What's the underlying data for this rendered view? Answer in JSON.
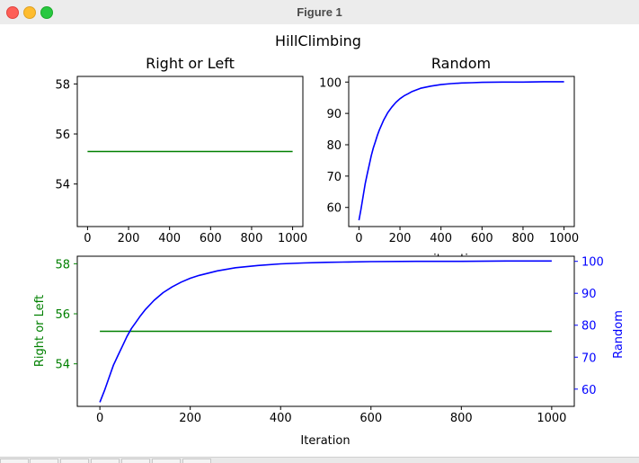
{
  "window": {
    "title": "Figure 1"
  },
  "figure": {
    "suptitle": "HillClimbing"
  },
  "chart_data": [
    {
      "type": "line",
      "title": "Right or Left",
      "xlabel": "",
      "ylabel": "",
      "xlim": [
        -50,
        1050
      ],
      "ylim": [
        52.3,
        58.3
      ],
      "xticks": [
        0,
        200,
        400,
        600,
        800,
        1000
      ],
      "yticks": [
        54,
        56,
        58
      ],
      "series": [
        {
          "color": "#008000",
          "x": [
            0,
            1000
          ],
          "y": [
            55.3,
            55.3
          ]
        }
      ]
    },
    {
      "type": "line",
      "title": "Random",
      "xlabel": "iterations",
      "ylabel": "",
      "xlim": [
        -50,
        1050
      ],
      "ylim": [
        53.9,
        101.8
      ],
      "xticks": [
        0,
        200,
        400,
        600,
        800,
        1000
      ],
      "yticks": [
        60,
        70,
        80,
        90,
        100
      ],
      "series": [
        {
          "color": "#0000ff",
          "x": [
            0,
            10,
            20,
            30,
            40,
            50,
            60,
            70,
            80,
            90,
            100,
            120,
            140,
            160,
            180,
            200,
            220,
            240,
            260,
            280,
            300,
            350,
            400,
            450,
            500,
            550,
            600,
            700,
            800,
            900,
            1000
          ],
          "y": [
            55.9,
            59.5,
            63.5,
            67.5,
            70.5,
            73.5,
            76.5,
            79.0,
            81.0,
            83.0,
            84.8,
            87.8,
            90.2,
            92.0,
            93.5,
            94.7,
            95.6,
            96.3,
            97.0,
            97.5,
            98.0,
            98.7,
            99.2,
            99.5,
            99.7,
            99.8,
            99.9,
            100.0,
            100.0,
            100.1,
            100.1
          ]
        }
      ]
    },
    {
      "type": "line",
      "title": "",
      "xlabel": "Iteration",
      "ylabel": "Right or Left",
      "ylabel_right": "Random",
      "xlim": [
        -50,
        1050
      ],
      "ylim": [
        52.3,
        58.3
      ],
      "ylim_right": [
        54.6,
        101.6
      ],
      "xticks": [
        0,
        200,
        400,
        600,
        800,
        1000
      ],
      "yticks": [
        54,
        56,
        58
      ],
      "yticks_right": [
        60,
        70,
        80,
        90,
        100
      ],
      "left_color": "#008000",
      "right_color": "#0000ff",
      "series": [
        {
          "color": "#008000",
          "axis": "left",
          "x": [
            0,
            1000
          ],
          "y": [
            55.3,
            55.3
          ]
        },
        {
          "color": "#0000ff",
          "axis": "right",
          "x": [
            0,
            10,
            20,
            30,
            40,
            50,
            60,
            70,
            80,
            90,
            100,
            120,
            140,
            160,
            180,
            200,
            220,
            240,
            260,
            280,
            300,
            350,
            400,
            450,
            500,
            550,
            600,
            700,
            800,
            900,
            1000
          ],
          "y": [
            55.9,
            59.5,
            63.5,
            67.5,
            70.5,
            73.5,
            76.5,
            79.0,
            81.0,
            83.0,
            84.8,
            87.8,
            90.2,
            92.0,
            93.5,
            94.7,
            95.6,
            96.3,
            97.0,
            97.5,
            98.0,
            98.7,
            99.2,
            99.5,
            99.7,
            99.8,
            99.9,
            100.0,
            100.0,
            100.1,
            100.1
          ]
        }
      ]
    }
  ]
}
